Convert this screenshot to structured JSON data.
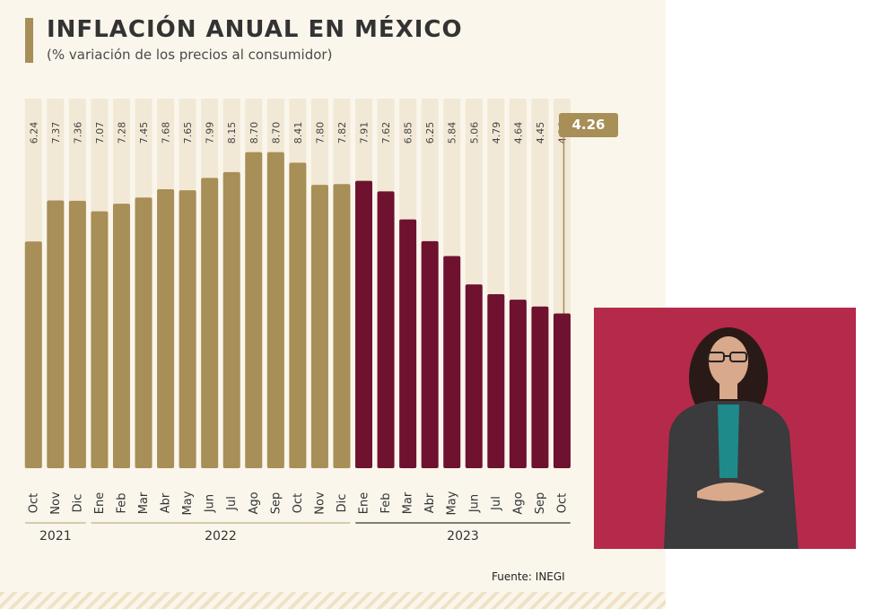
{
  "title": "INFLACIÓN ANUAL EN MÉXICO",
  "subtitle": "(% variación de los precios al consumidor)",
  "source": "Fuente: INEGI",
  "highlight_value": "4.26",
  "colors": {
    "gold": "#a88e57",
    "maroon": "#6e1230",
    "background": "#faf6ec",
    "interpreter_bg": "#b52a4a"
  },
  "chart_data": {
    "type": "bar",
    "categories": [
      "Oct",
      "Nov",
      "Dic",
      "Ene",
      "Feb",
      "Mar",
      "Abr",
      "May",
      "Jun",
      "Jul",
      "Ago",
      "Sep",
      "Oct",
      "Nov",
      "Dic",
      "Ene",
      "Feb",
      "Mar",
      "Abr",
      "May",
      "Jun",
      "Jul",
      "Ago",
      "Sep",
      "Oct"
    ],
    "values": [
      6.24,
      7.37,
      7.36,
      7.07,
      7.28,
      7.45,
      7.68,
      7.65,
      7.99,
      8.15,
      8.7,
      8.7,
      8.41,
      7.8,
      7.82,
      7.91,
      7.62,
      6.85,
      6.25,
      5.84,
      5.06,
      4.79,
      4.64,
      4.45,
      4.26
    ],
    "value_labels": [
      "6.24",
      "7.37",
      "7.36",
      "7.07",
      "7.28",
      "7.45",
      "7.68",
      "7.65",
      "7.99",
      "8.15",
      "8.70",
      "8.70",
      "8.41",
      "7.80",
      "7.82",
      "7.91",
      "7.62",
      "6.85",
      "6.25",
      "5.84",
      "5.06",
      "4.79",
      "4.64",
      "4.45",
      "4.26"
    ],
    "groups": [
      {
        "label": "2021",
        "start": 0,
        "end": 2
      },
      {
        "label": "2022",
        "start": 3,
        "end": 14
      },
      {
        "label": "2023",
        "start": 15,
        "end": 24
      }
    ],
    "highlight_index": 24,
    "ylim": [
      0,
      10
    ],
    "grid": false,
    "title": "INFLACIÓN ANUAL EN MÉXICO",
    "xlabel": "",
    "ylabel": ""
  }
}
